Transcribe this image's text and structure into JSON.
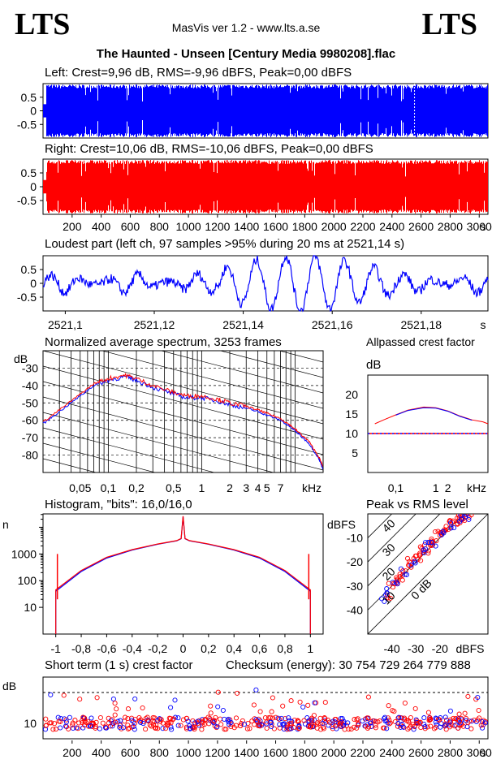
{
  "header": {
    "logo_left": "LTS",
    "logo_right": "LTS",
    "app_title": "MasVis ver 1.2 - www.lts.a.se",
    "file_title": "The Haunted - Unseen [Century Media 9980208].flac"
  },
  "colors": {
    "left": "#0000ff",
    "right": "#ff0000",
    "grid": "#000000"
  },
  "chart_data": [
    {
      "type": "area",
      "id": "left_waveform",
      "title": "Left: Crest=9,96 dB, RMS=-9,96 dBFS, Peak=0,00 dBFS",
      "yticks": [
        "0.5",
        "0",
        "-0.5"
      ],
      "ylim": [
        -1,
        1
      ],
      "xlim": [
        0,
        3060
      ],
      "color": "blue",
      "marker_x": 2555
    },
    {
      "type": "area",
      "id": "right_waveform",
      "title": "Right: Crest=10,06 dB, RMS=-10,06 dBFS, Peak=0,00 dBFS",
      "yticks": [
        "0.5",
        "0",
        "-0.5"
      ],
      "ylim": [
        -1,
        1
      ],
      "xlim": [
        0,
        3060
      ],
      "x_tick_labels": [
        "200",
        "400",
        "600",
        "800",
        "1000",
        "1200",
        "1400",
        "1600",
        "1800",
        "2000",
        "2200",
        "2400",
        "2600",
        "2800",
        "3000",
        "s"
      ],
      "color": "red"
    },
    {
      "type": "line",
      "id": "loudest_part",
      "title": "Loudest part (left  ch, 97 samples >95% during 20 ms at 2521,14 s)",
      "yticks": [
        "0.5",
        "0",
        "-0.5"
      ],
      "ylim": [
        -1,
        1
      ],
      "xlim": [
        2521.095,
        2521.195
      ],
      "x_tick_labels": [
        "2521,1",
        "2521,12",
        "2521,14",
        "2521,16",
        "2521,18",
        "s"
      ],
      "color": "blue"
    },
    {
      "type": "line",
      "id": "spectrum",
      "title": "Normalized average spectrum, 3253 frames",
      "ylabel": "dB",
      "yticks": [
        "-30",
        "-40",
        "-50",
        "-60",
        "-70",
        "-80"
      ],
      "ylim": [
        -90,
        -20
      ],
      "x_tick_labels": [
        "0,05",
        "0,1",
        "0,2",
        "0,5",
        "1",
        "2",
        "3",
        "4",
        "5",
        "7",
        "kHz"
      ],
      "series": [
        {
          "color": "blue",
          "x": [
            0.02,
            0.03,
            0.05,
            0.07,
            0.1,
            0.15,
            0.2,
            0.3,
            0.5,
            0.7,
            1,
            1.5,
            2,
            3,
            4,
            5,
            7,
            9,
            11,
            14,
            18,
            20
          ],
          "y": [
            -62,
            -55,
            -46,
            -40,
            -37,
            -35,
            -37,
            -41,
            -45,
            -47,
            -47,
            -49,
            -51,
            -53,
            -55,
            -57,
            -60,
            -64,
            -68,
            -73,
            -82,
            -88
          ]
        },
        {
          "color": "red",
          "x": [
            0.02,
            0.03,
            0.05,
            0.07,
            0.1,
            0.15,
            0.2,
            0.3,
            0.5,
            0.7,
            1,
            1.5,
            2,
            3,
            4,
            5,
            7,
            9,
            11,
            14,
            18,
            20
          ],
          "y": [
            -61,
            -54,
            -45,
            -39,
            -36,
            -34,
            -36,
            -40,
            -44,
            -46,
            -46,
            -48,
            -50,
            -52,
            -54,
            -56,
            -59,
            -63,
            -67,
            -72,
            -81,
            -87
          ]
        }
      ]
    },
    {
      "type": "line",
      "id": "allpassed_crest",
      "title": "Allpassed crest factor",
      "ylabel": "dB",
      "yticks": [
        "20",
        "15",
        "10",
        "5"
      ],
      "ylim": [
        0,
        25
      ],
      "x_tick_labels": [
        "0,1",
        "1",
        "2",
        "kHz"
      ],
      "reference_y": 10,
      "series": [
        {
          "color": "red",
          "x": [
            0.03,
            0.05,
            0.1,
            0.2,
            0.5,
            1,
            2,
            4,
            8,
            15,
            20
          ],
          "y": [
            12.5,
            13.5,
            14.8,
            16,
            16.8,
            16.6,
            15.8,
            14.5,
            13.5,
            13,
            12.5
          ]
        },
        {
          "color": "blue",
          "x": [
            0.1,
            0.2,
            0.5,
            1,
            2,
            4,
            8
          ],
          "y": [
            14.7,
            15.9,
            16.6,
            16.5,
            15.7,
            14.4,
            13.4
          ]
        }
      ]
    },
    {
      "type": "line",
      "id": "histogram",
      "title": "Histogram, \"bits\": 16,0/16,0",
      "ylabel": "n",
      "yscale": "log",
      "yticks": [
        "1000",
        "100",
        "10"
      ],
      "xlim": [
        -1.1,
        1.1
      ],
      "x_tick_labels": [
        "-1",
        "-0,8",
        "-0,6",
        "-0,4",
        "-0,2",
        "0",
        "0,2",
        "0,4",
        "0,6",
        "0,8",
        "1"
      ],
      "series": [
        {
          "color": "blue",
          "x": [
            -1,
            -0.8,
            -0.6,
            -0.4,
            -0.2,
            -0.05,
            0,
            0.05,
            0.2,
            0.4,
            0.6,
            0.8,
            1
          ],
          "y": [
            40,
            220,
            700,
            1400,
            2300,
            3100,
            25000,
            3100,
            2300,
            1400,
            700,
            220,
            40
          ]
        },
        {
          "color": "red",
          "x": [
            -1,
            -0.8,
            -0.6,
            -0.4,
            -0.2,
            -0.05,
            0,
            0.05,
            0.2,
            0.4,
            0.6,
            0.8,
            1
          ],
          "y": [
            45,
            240,
            750,
            1450,
            2350,
            3150,
            26000,
            3150,
            2350,
            1450,
            750,
            240,
            45
          ]
        }
      ]
    },
    {
      "type": "scatter",
      "id": "peak_vs_rms",
      "title": "Peak vs RMS level",
      "ylabel": "dBFS",
      "yticks": [
        "-10",
        "-20",
        "-30",
        "-40"
      ],
      "x_tick_labels": [
        "-40",
        "-30",
        "-20",
        "dBFS"
      ],
      "diagonal_labels": [
        "40",
        "30",
        "20",
        "10",
        "0 dB"
      ],
      "xlim": [
        -50,
        0
      ],
      "ylim": [
        -50,
        0
      ],
      "series": [
        {
          "color": "red",
          "points": [
            [
              -42,
              -34
            ],
            [
              -40,
              -30
            ],
            [
              -38,
              -28
            ],
            [
              -36,
              -25
            ],
            [
              -34,
              -23
            ],
            [
              -32,
              -21
            ],
            [
              -30,
              -19
            ],
            [
              -28,
              -17
            ],
            [
              -26,
              -15
            ],
            [
              -24,
              -13
            ],
            [
              -22,
              -11
            ],
            [
              -20,
              -9
            ],
            [
              -18,
              -7
            ],
            [
              -16,
              -5
            ],
            [
              -14,
              -3
            ],
            [
              -12,
              -2
            ],
            [
              -10,
              -1
            ],
            [
              -8,
              -1
            ],
            [
              -33,
              -20
            ],
            [
              -27,
              -14
            ],
            [
              -21,
              -8
            ],
            [
              -15,
              -4
            ],
            [
              -37,
              -27
            ],
            [
              -29,
              -18
            ],
            [
              -23,
              -12
            ],
            [
              -17,
              -6
            ],
            [
              -13,
              -3
            ],
            [
              -11,
              -2
            ]
          ]
        },
        {
          "color": "blue",
          "points": [
            [
              -43,
              -35
            ],
            [
              -39,
              -29
            ],
            [
              -35,
              -24
            ],
            [
              -31,
              -20
            ],
            [
              -27,
              -16
            ],
            [
              -23,
              -12
            ],
            [
              -19,
              -8
            ],
            [
              -15,
              -5
            ],
            [
              -11,
              -2
            ],
            [
              -9,
              -1
            ],
            [
              -25,
              -13
            ],
            [
              -41,
              -32
            ]
          ]
        }
      ]
    },
    {
      "type": "scatter",
      "id": "short_term_crest",
      "title": "Short term (1 s) crest factor",
      "ylabel": "dB",
      "yticks": [
        "10"
      ],
      "reference_y": 20,
      "checksum_label": "Checksum (energy):  30 754 729 264 779 888",
      "x_tick_labels": [
        "200",
        "400",
        "600",
        "800",
        "1000",
        "1200",
        "1400",
        "1600",
        "1800",
        "2000",
        "2200",
        "2400",
        "2600",
        "2800",
        "3000",
        "s"
      ]
    }
  ]
}
